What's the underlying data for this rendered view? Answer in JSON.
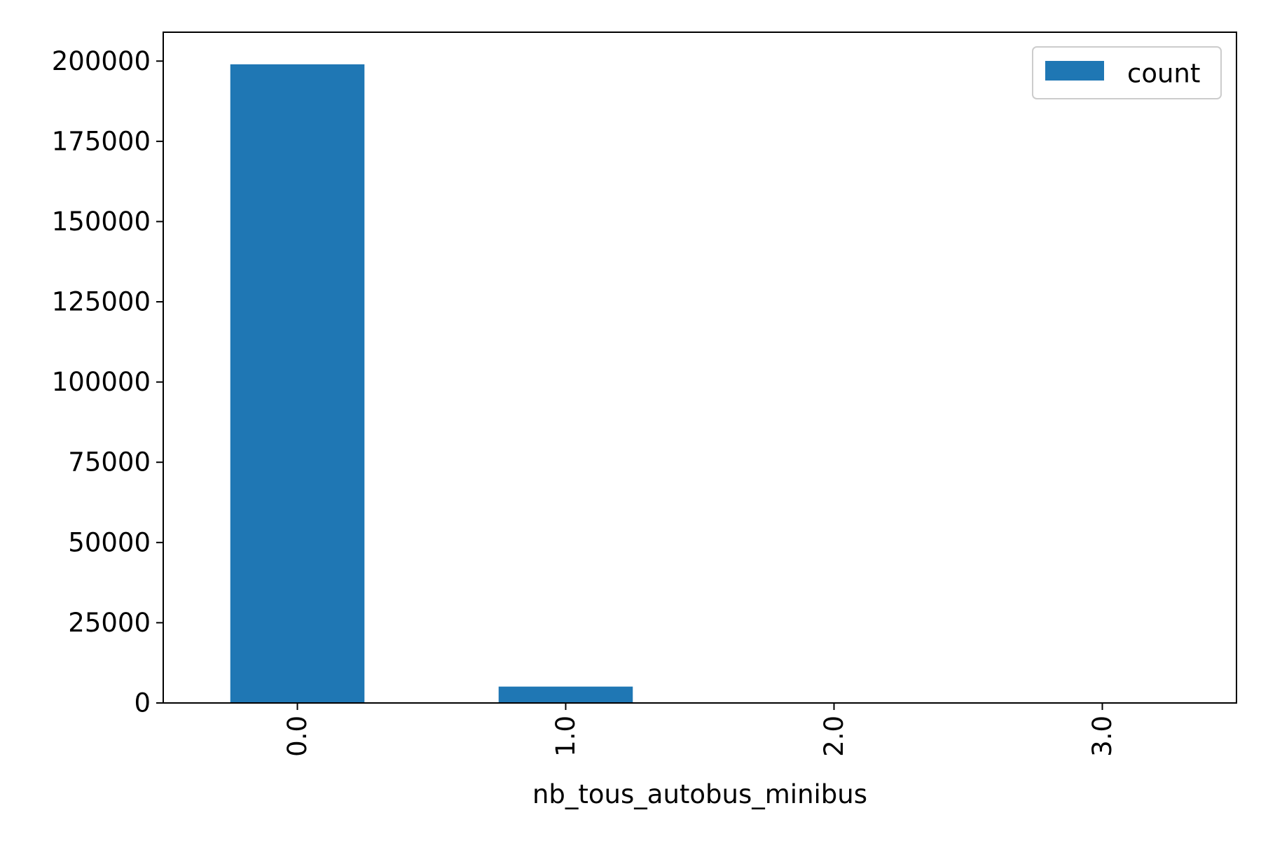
{
  "chart_data": {
    "type": "bar",
    "categories": [
      "0.0",
      "1.0",
      "2.0",
      "3.0"
    ],
    "series": [
      {
        "name": "count",
        "values": [
          199000,
          5100,
          40,
          2
        ],
        "color": "#1f77b4"
      }
    ],
    "xlabel": "nb_tous_autobus_minibus",
    "ylabel": "",
    "ylim": [
      0,
      209000
    ],
    "yticks": [
      0,
      25000,
      50000,
      75000,
      100000,
      125000,
      150000,
      175000,
      200000
    ],
    "ytick_labels": [
      "0",
      "25000",
      "50000",
      "75000",
      "100000",
      "125000",
      "150000",
      "175000",
      "200000"
    ],
    "xtick_rotation": "vertical",
    "grid": false,
    "legend": {
      "placement": "top-right",
      "entries": [
        "count"
      ]
    }
  }
}
